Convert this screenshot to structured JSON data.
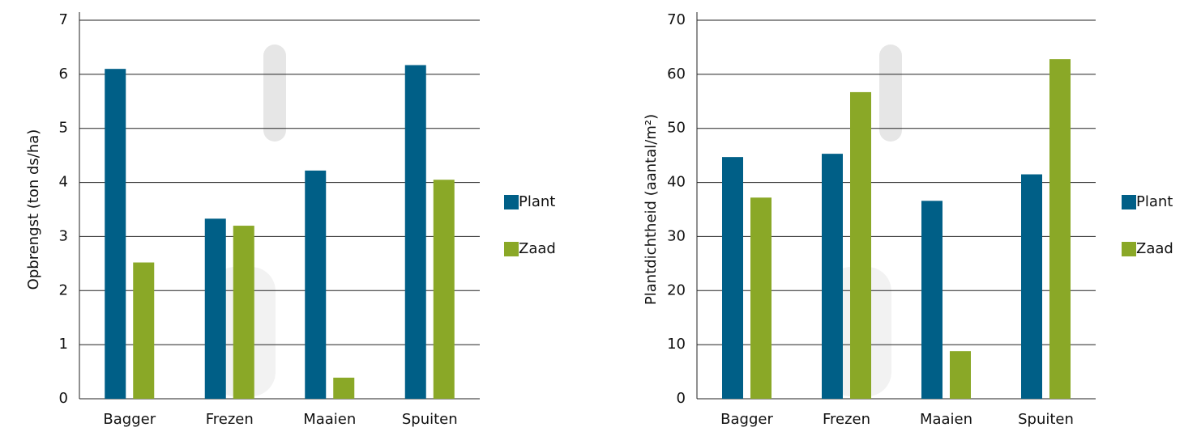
{
  "chart_data": [
    {
      "type": "bar",
      "y_label": "Opbrengst (ton ds/ha)",
      "categories": [
        "Bagger",
        "Frezen",
        "Maaien",
        "Spuiten"
      ],
      "series": [
        {
          "name": "Plant",
          "color": "#005f87",
          "values": [
            6.1,
            3.33,
            4.22,
            6.17
          ]
        },
        {
          "name": "Zaad",
          "color": "#8aa827",
          "values": [
            2.52,
            3.2,
            0.39,
            4.05
          ]
        }
      ],
      "ylim": [
        0,
        7
      ],
      "yticks": [
        0,
        1,
        2,
        3,
        4,
        5,
        6,
        7
      ],
      "grid": true,
      "legend": "right"
    },
    {
      "type": "bar",
      "y_label": "Plantdichtheid (aantal/m²)",
      "categories": [
        "Bagger",
        "Frezen",
        "Maaien",
        "Spuiten"
      ],
      "series": [
        {
          "name": "Plant",
          "color": "#005f87",
          "values": [
            44.7,
            45.3,
            36.6,
            41.5
          ]
        },
        {
          "name": "Zaad",
          "color": "#8aa827",
          "values": [
            37.2,
            56.7,
            8.8,
            62.8
          ]
        }
      ],
      "ylim": [
        0,
        70
      ],
      "yticks": [
        0,
        10,
        20,
        30,
        40,
        50,
        60,
        70
      ],
      "grid": true,
      "legend": "right"
    }
  ]
}
